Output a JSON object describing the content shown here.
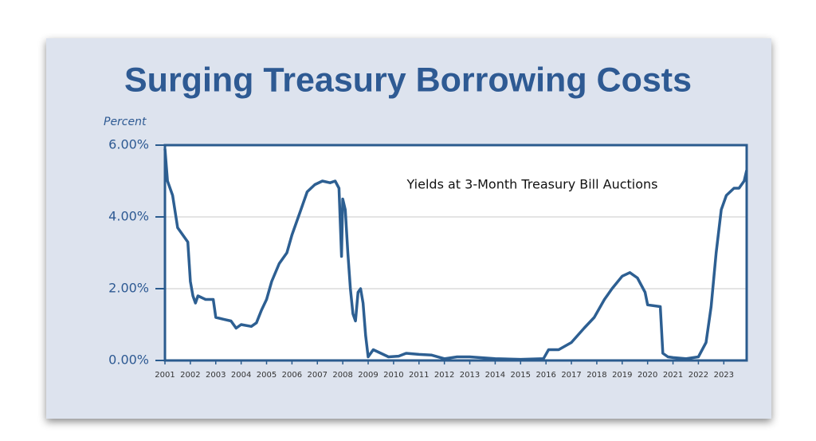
{
  "chart_data": {
    "type": "line",
    "title": "Surging Treasury Borrowing Costs",
    "y_label": "Percent",
    "annotation": "Yields at 3-Month Treasury Bill Auctions",
    "xlim": [
      2001,
      2023.9
    ],
    "xticks": [
      2001,
      2002,
      2003,
      2004,
      2005,
      2006,
      2007,
      2008,
      2009,
      2010,
      2011,
      2012,
      2013,
      2014,
      2015,
      2016,
      2017,
      2018,
      2019,
      2020,
      2021,
      2022,
      2023
    ],
    "ylim": [
      0,
      6
    ],
    "yticks": [
      {
        "value": 0,
        "label": "0.00%"
      },
      {
        "value": 2,
        "label": "2.00%"
      },
      {
        "value": 4,
        "label": "4.00%"
      },
      {
        "value": 6,
        "label": "6.00%"
      }
    ],
    "grid": true,
    "series": [
      {
        "color": "#2d5f92",
        "x": [
          2001.0,
          2001.1,
          2001.3,
          2001.5,
          2001.7,
          2001.9,
          2002.0,
          2002.1,
          2002.2,
          2002.3,
          2002.6,
          2002.9,
          2003.0,
          2003.3,
          2003.6,
          2003.8,
          2004.0,
          2004.4,
          2004.6,
          2004.8,
          2005.0,
          2005.2,
          2005.5,
          2005.8,
          2006.0,
          2006.3,
          2006.6,
          2006.9,
          2007.2,
          2007.5,
          2007.7,
          2007.85,
          2007.95,
          2008.0,
          2008.1,
          2008.2,
          2008.3,
          2008.4,
          2008.5,
          2008.6,
          2008.7,
          2008.8,
          2008.9,
          2009.0,
          2009.2,
          2009.5,
          2009.8,
          2010.2,
          2010.5,
          2011.0,
          2011.5,
          2012.0,
          2012.5,
          2013.0,
          2014.0,
          2015.0,
          2015.9,
          2016.1,
          2016.5,
          2017.0,
          2017.5,
          2017.9,
          2018.3,
          2018.6,
          2019.0,
          2019.3,
          2019.6,
          2019.9,
          2020.0,
          2020.5,
          2020.6,
          2020.8,
          2021.0,
          2021.5,
          2022.0,
          2022.3,
          2022.5,
          2022.7,
          2022.9,
          2023.1,
          2023.4,
          2023.6,
          2023.8,
          2023.9
        ],
        "values": [
          5.9,
          5.0,
          4.6,
          3.7,
          3.5,
          3.3,
          2.2,
          1.8,
          1.6,
          1.8,
          1.7,
          1.7,
          1.2,
          1.15,
          1.1,
          0.9,
          1.0,
          0.95,
          1.05,
          1.4,
          1.7,
          2.2,
          2.7,
          3.0,
          3.5,
          4.1,
          4.7,
          4.9,
          5.0,
          4.95,
          5.0,
          4.8,
          2.9,
          4.5,
          4.2,
          3.0,
          2.0,
          1.3,
          1.1,
          1.9,
          2.0,
          1.6,
          0.7,
          0.1,
          0.3,
          0.2,
          0.1,
          0.12,
          0.2,
          0.17,
          0.15,
          0.05,
          0.1,
          0.1,
          0.05,
          0.03,
          0.05,
          0.3,
          0.3,
          0.5,
          0.9,
          1.2,
          1.7,
          2.0,
          2.35,
          2.45,
          2.3,
          1.9,
          1.55,
          1.5,
          0.2,
          0.1,
          0.08,
          0.05,
          0.1,
          0.5,
          1.5,
          3.0,
          4.2,
          4.6,
          4.8,
          4.8,
          5.0,
          5.3
        ]
      }
    ]
  }
}
